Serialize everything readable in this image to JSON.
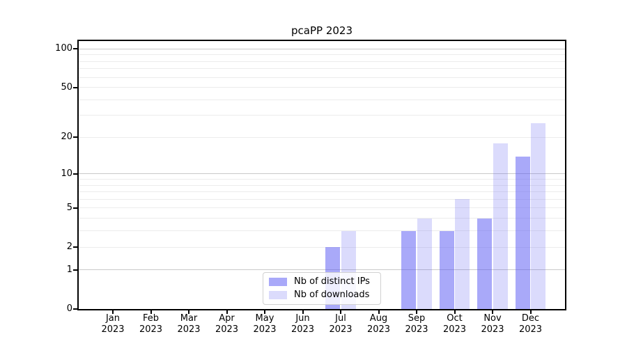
{
  "chart_data": {
    "type": "bar",
    "title": "pcaPP 2023",
    "x_tick_months": [
      "Jan",
      "Feb",
      "Mar",
      "Apr",
      "May",
      "Jun",
      "Jul",
      "Aug",
      "Sep",
      "Oct",
      "Nov",
      "Dec"
    ],
    "x_tick_year": "2023",
    "series": [
      {
        "name": "Nb of distinct IPs",
        "color": "rgba(83,83,243,0.50)",
        "values": [
          0,
          0,
          0,
          0,
          0,
          0,
          2,
          0,
          3,
          3,
          4,
          14
        ]
      },
      {
        "name": "Nb of downloads",
        "color": "rgba(83,83,243,0.21)",
        "values": [
          0,
          0,
          0,
          0,
          0,
          0,
          3,
          0,
          4,
          6,
          18,
          26
        ]
      }
    ],
    "yscale": "log1p",
    "yticks": [
      0,
      1,
      2,
      5,
      10,
      20,
      50,
      100
    ],
    "ylim": [
      0,
      115
    ],
    "grid_major": [
      1,
      10,
      100
    ],
    "grid_minor": [
      2,
      3,
      4,
      5,
      6,
      7,
      8,
      9,
      20,
      30,
      40,
      50,
      60,
      70,
      80,
      90
    ],
    "legend_position": "lower center",
    "colors": {
      "grid_minor": "#ececec",
      "grid_major": "#c9c9c9",
      "spine": "#000000",
      "background": "#ffffff"
    }
  }
}
